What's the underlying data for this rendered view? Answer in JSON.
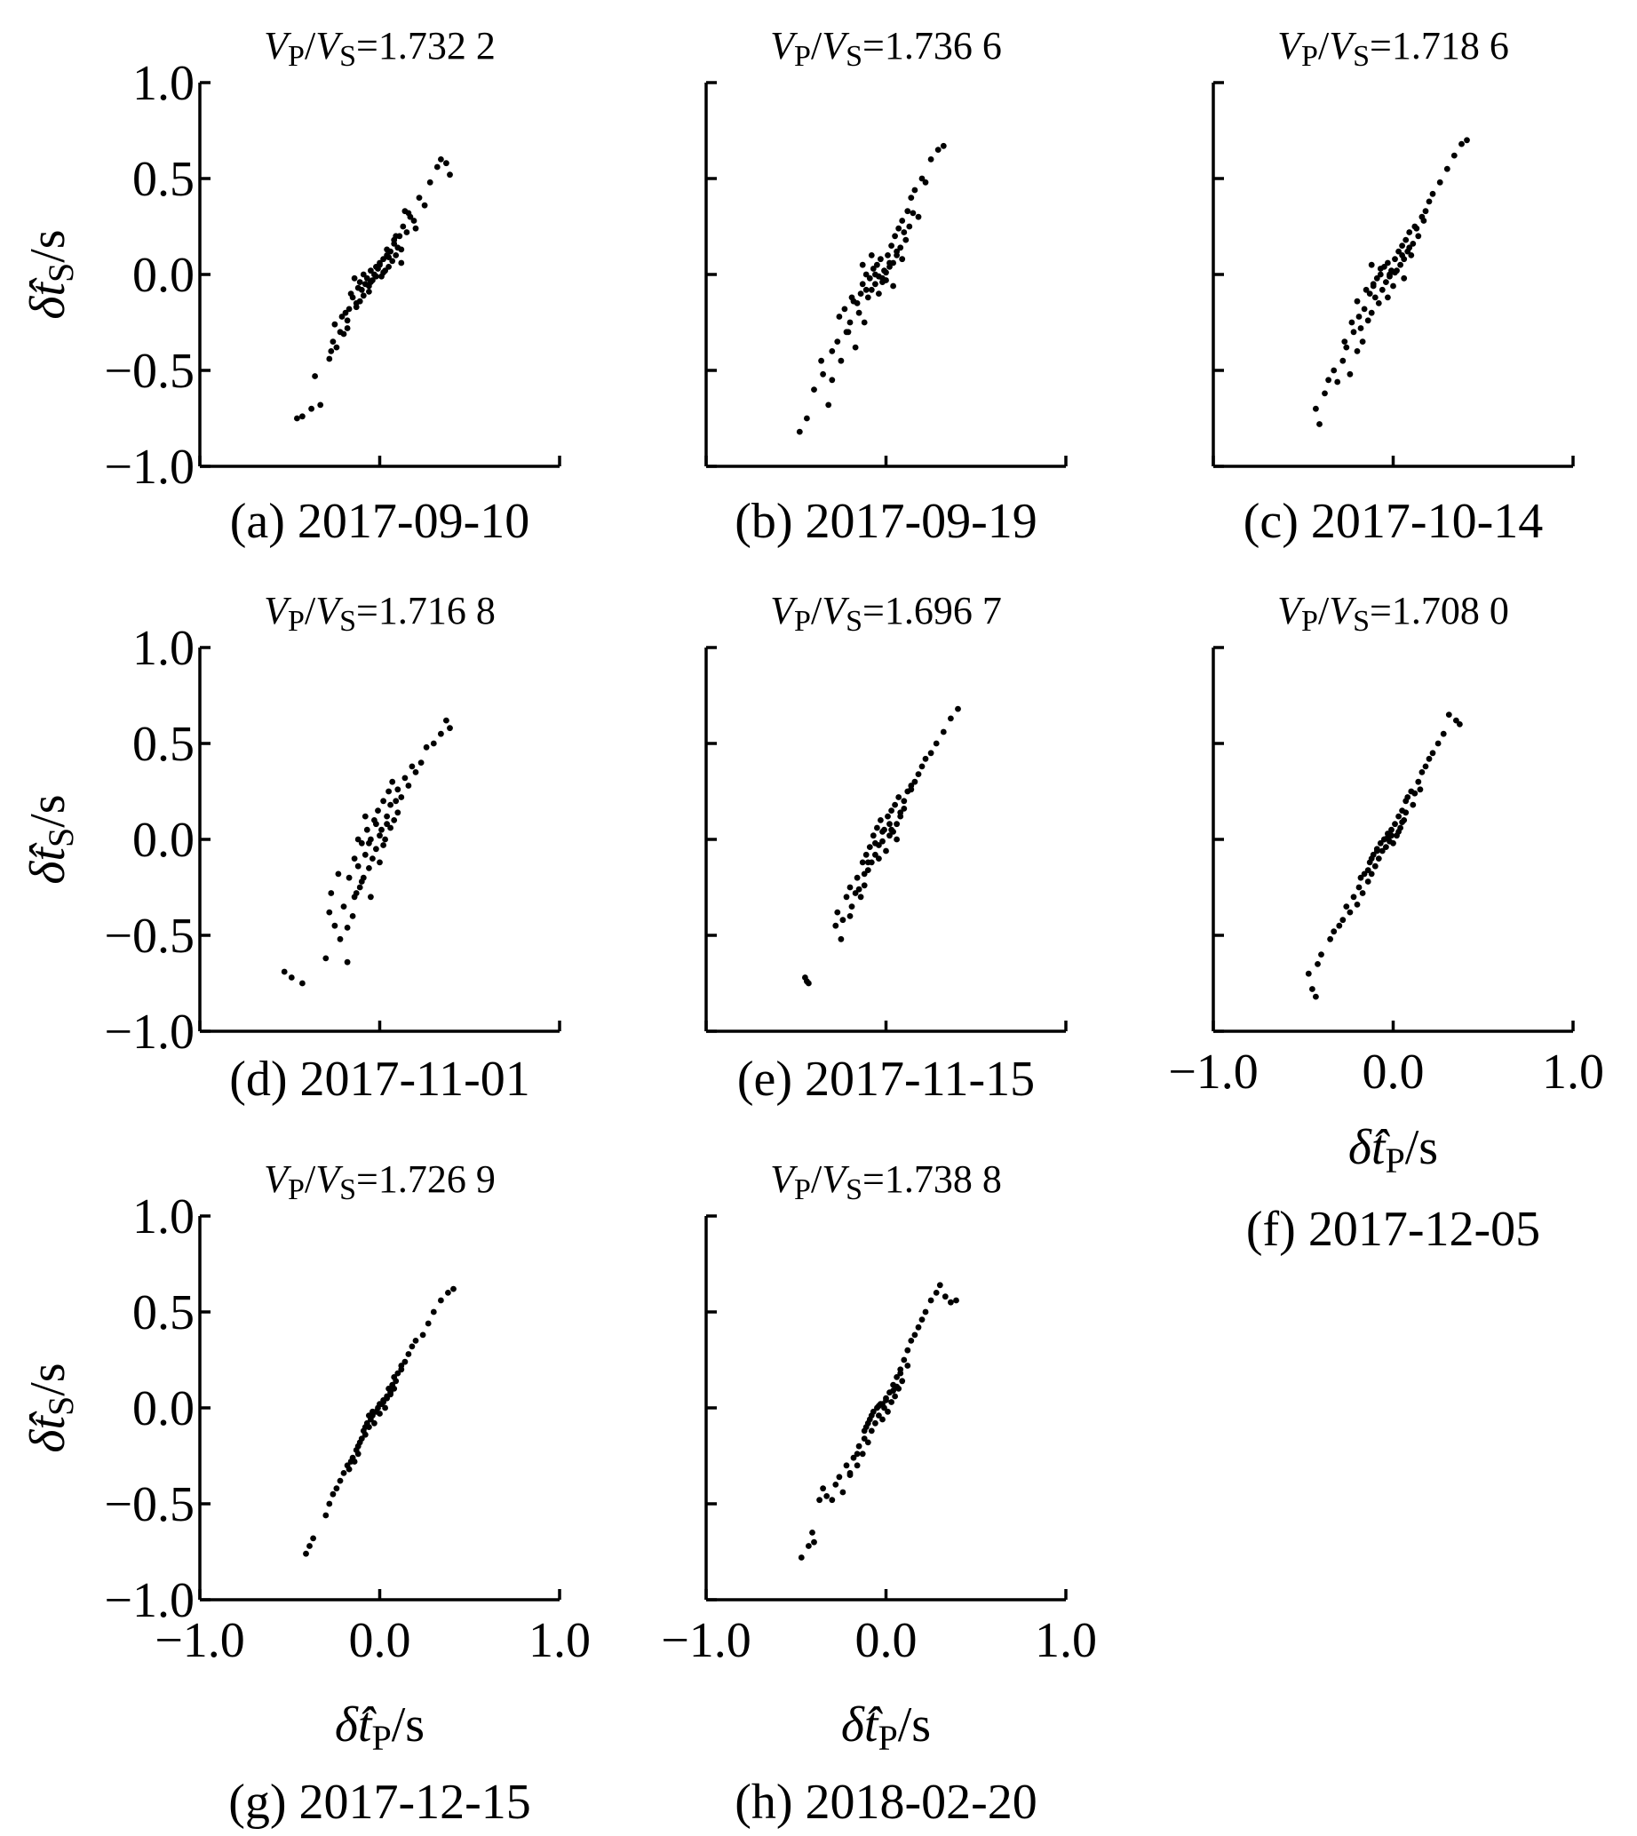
{
  "figure": {
    "tick_labels": [
      "−1.0",
      "−0.5",
      "0.0",
      "0.5",
      "1.0"
    ],
    "x_tick_labels": [
      "−1.0",
      "0.0",
      "1.0"
    ],
    "y_axis_title": {
      "delta": "δ̂",
      "var": "t",
      "sub": "S",
      "unit": "/s"
    },
    "x_axis_title": {
      "delta": "δ̂",
      "var": "t",
      "sub": "P",
      "unit": "/s"
    },
    "ratio_symbol": {
      "v": "V",
      "p": "P",
      "s": "S",
      "slash": "/",
      "eq": "="
    }
  },
  "chart_data": [
    {
      "id": "a",
      "type": "scatter",
      "title": "1.732 2",
      "caption": "(a) 2017-09-10",
      "xlim": [
        -1.0,
        1.0
      ],
      "ylim": [
        -1.0,
        1.0
      ],
      "xlabel": "",
      "ylabel": "δ̂tS/s",
      "x": [
        -0.46,
        -0.43,
        -0.38,
        -0.36,
        -0.33,
        -0.28,
        -0.27,
        -0.26,
        -0.25,
        -0.22,
        -0.21,
        -0.2,
        -0.19,
        -0.18,
        -0.17,
        -0.16,
        -0.15,
        -0.14,
        -0.13,
        -0.12,
        -0.11,
        -0.1,
        -0.09,
        -0.08,
        -0.07,
        -0.06,
        -0.05,
        -0.04,
        -0.03,
        -0.02,
        -0.01,
        0.0,
        0.01,
        0.02,
        0.03,
        0.04,
        0.05,
        0.06,
        0.07,
        0.08,
        0.09,
        0.1,
        0.11,
        0.12,
        0.13,
        0.15,
        0.17,
        0.19,
        0.22,
        0.25,
        0.28,
        0.32,
        0.34,
        0.37,
        0.39,
        -0.24,
        -0.18,
        -0.13,
        -0.09,
        -0.05,
        -0.02,
        0.02,
        0.05,
        0.08,
        0.12,
        0.16,
        0.2,
        -0.11,
        -0.06,
        0.0,
        0.04,
        0.09,
        0.14
      ],
      "y": [
        -0.75,
        -0.74,
        -0.7,
        -0.53,
        -0.68,
        -0.44,
        -0.4,
        -0.35,
        -0.26,
        -0.3,
        -0.22,
        -0.31,
        -0.2,
        -0.24,
        -0.18,
        -0.1,
        -0.12,
        -0.02,
        -0.15,
        -0.07,
        -0.04,
        -0.08,
        0.0,
        -0.05,
        -0.02,
        -0.06,
        0.02,
        -0.03,
        0.0,
        -0.01,
        0.03,
        0.05,
        -0.01,
        0.08,
        0.02,
        0.1,
        0.04,
        0.12,
        0.07,
        0.16,
        0.1,
        0.14,
        0.2,
        0.13,
        0.25,
        0.22,
        0.3,
        0.28,
        0.4,
        0.36,
        0.48,
        0.56,
        0.6,
        0.58,
        0.52,
        -0.38,
        -0.28,
        -0.17,
        -0.11,
        -0.04,
        0.04,
        0.01,
        0.09,
        0.18,
        0.06,
        0.32,
        0.24,
        -0.14,
        -0.09,
        0.06,
        0.13,
        0.2,
        0.33
      ]
    },
    {
      "id": "b",
      "type": "scatter",
      "title": "1.736 6",
      "caption": "(b) 2017-09-19",
      "xlim": [
        -1.0,
        1.0
      ],
      "ylim": [
        -1.0,
        1.0
      ],
      "xlabel": "",
      "ylabel": "",
      "x": [
        -0.48,
        -0.44,
        -0.4,
        -0.36,
        -0.35,
        -0.32,
        -0.3,
        -0.27,
        -0.25,
        -0.23,
        -0.22,
        -0.2,
        -0.18,
        -0.17,
        -0.15,
        -0.14,
        -0.13,
        -0.12,
        -0.11,
        -0.1,
        -0.09,
        -0.08,
        -0.07,
        -0.06,
        -0.05,
        -0.04,
        -0.03,
        -0.02,
        -0.01,
        0.0,
        0.01,
        0.02,
        0.03,
        0.04,
        0.05,
        0.06,
        0.07,
        0.08,
        0.09,
        0.1,
        0.12,
        0.13,
        0.14,
        0.16,
        0.18,
        0.2,
        0.22,
        0.25,
        0.29,
        0.32,
        -0.3,
        -0.26,
        -0.21,
        -0.16,
        -0.11,
        -0.06,
        -0.02,
        0.02,
        0.06,
        0.11,
        0.15,
        -0.19,
        -0.08,
        0.0,
        0.04,
        0.09,
        -0.13,
        -0.04
      ],
      "y": [
        -0.82,
        -0.75,
        -0.6,
        -0.45,
        -0.52,
        -0.68,
        -0.4,
        -0.35,
        -0.45,
        -0.18,
        -0.3,
        -0.25,
        -0.14,
        -0.38,
        -0.2,
        -0.1,
        -0.05,
        -0.25,
        0.0,
        -0.12,
        -0.02,
        -0.08,
        0.03,
        -0.05,
        0.05,
        -0.1,
        0.08,
        -0.02,
        0.02,
        -0.03,
        0.1,
        0.04,
        0.15,
        0.06,
        0.2,
        0.1,
        0.24,
        0.14,
        0.28,
        0.22,
        0.33,
        0.25,
        0.4,
        0.44,
        0.3,
        0.5,
        0.48,
        0.6,
        0.65,
        0.67,
        -0.55,
        -0.22,
        -0.3,
        -0.15,
        -0.08,
        0.0,
        -0.04,
        0.06,
        0.12,
        0.18,
        0.32,
        -0.12,
        0.1,
        0.01,
        -0.06,
        0.08,
        0.05,
        -0.01
      ]
    },
    {
      "id": "c",
      "type": "scatter",
      "title": "1.718 6",
      "caption": "(c) 2017-10-14",
      "xlim": [
        -1.0,
        1.0
      ],
      "ylim": [
        -1.0,
        1.0
      ],
      "xlabel": "",
      "ylabel": "",
      "x": [
        -0.43,
        -0.41,
        -0.38,
        -0.36,
        -0.33,
        -0.31,
        -0.28,
        -0.26,
        -0.24,
        -0.22,
        -0.2,
        -0.19,
        -0.17,
        -0.16,
        -0.14,
        -0.13,
        -0.12,
        -0.11,
        -0.1,
        -0.09,
        -0.08,
        -0.07,
        -0.06,
        -0.05,
        -0.04,
        -0.03,
        -0.02,
        -0.01,
        0.0,
        0.01,
        0.02,
        0.03,
        0.04,
        0.05,
        0.06,
        0.07,
        0.08,
        0.09,
        0.1,
        0.12,
        0.14,
        0.16,
        0.18,
        0.2,
        0.22,
        0.26,
        0.3,
        0.34,
        0.38,
        0.41,
        -0.27,
        -0.23,
        -0.18,
        -0.15,
        -0.11,
        -0.07,
        -0.03,
        0.01,
        0.05,
        0.09,
        0.13,
        0.17,
        -0.2,
        -0.12,
        -0.02,
        0.06,
        0.11
      ],
      "y": [
        -0.7,
        -0.78,
        -0.62,
        -0.55,
        -0.5,
        -0.56,
        -0.45,
        -0.38,
        -0.52,
        -0.3,
        -0.4,
        -0.22,
        -0.35,
        -0.18,
        -0.24,
        -0.1,
        -0.2,
        -0.05,
        -0.12,
        -0.02,
        -0.15,
        0.0,
        -0.08,
        0.04,
        -0.04,
        0.06,
        -0.01,
        0.02,
        -0.06,
        0.08,
        0.02,
        0.12,
        0.05,
        0.15,
        0.08,
        0.18,
        0.12,
        0.22,
        0.1,
        0.25,
        0.2,
        0.3,
        0.33,
        0.38,
        0.42,
        0.48,
        0.55,
        0.62,
        0.68,
        0.7,
        -0.35,
        -0.25,
        -0.28,
        -0.08,
        -0.06,
        0.03,
        -0.12,
        0.01,
        0.1,
        0.14,
        0.24,
        0.28,
        -0.14,
        0.05,
        0.0,
        -0.02,
        0.16
      ]
    },
    {
      "id": "d",
      "type": "scatter",
      "title": "1.716 8",
      "caption": "(d) 2017-11-01",
      "xlim": [
        -1.0,
        1.0
      ],
      "ylim": [
        -1.0,
        1.0
      ],
      "xlabel": "",
      "ylabel": "δ̂tS/s",
      "x": [
        -0.53,
        -0.49,
        -0.43,
        -0.3,
        -0.28,
        -0.27,
        -0.25,
        -0.23,
        -0.22,
        -0.2,
        -0.18,
        -0.17,
        -0.15,
        -0.14,
        -0.13,
        -0.12,
        -0.11,
        -0.1,
        -0.09,
        -0.08,
        -0.07,
        -0.06,
        -0.05,
        -0.04,
        -0.03,
        -0.02,
        -0.01,
        0.0,
        0.01,
        0.02,
        0.03,
        0.04,
        0.05,
        0.06,
        0.07,
        0.08,
        0.09,
        0.1,
        0.12,
        0.14,
        0.16,
        0.18,
        0.2,
        0.23,
        0.26,
        0.3,
        0.34,
        0.37,
        0.39,
        -0.18,
        -0.14,
        -0.1,
        -0.06,
        -0.02,
        0.02,
        0.06,
        0.1,
        -0.05,
        0.0,
        0.04,
        -0.12,
        -0.08
      ],
      "y": [
        -0.69,
        -0.72,
        -0.75,
        -0.62,
        -0.38,
        -0.28,
        -0.45,
        -0.18,
        -0.52,
        -0.35,
        -0.64,
        -0.2,
        -0.4,
        -0.1,
        -0.28,
        -0.14,
        -0.25,
        -0.02,
        -0.2,
        -0.08,
        0.05,
        -0.15,
        0.0,
        -0.1,
        0.1,
        -0.05,
        0.15,
        -0.12,
        0.05,
        0.2,
        0.0,
        0.12,
        0.25,
        0.06,
        0.3,
        0.1,
        0.2,
        0.14,
        0.22,
        0.32,
        0.28,
        0.38,
        0.35,
        0.4,
        0.48,
        0.5,
        0.55,
        0.62,
        0.58,
        -0.46,
        -0.3,
        -0.22,
        -0.02,
        0.08,
        -0.03,
        0.18,
        0.26,
        -0.3,
        0.02,
        0.08,
        0.0,
        0.12
      ]
    },
    {
      "id": "e",
      "type": "scatter",
      "title": "1.696 7",
      "caption": "(e) 2017-11-15",
      "xlim": [
        -1.0,
        1.0
      ],
      "ylim": [
        -1.0,
        1.0
      ],
      "xlabel": "",
      "ylabel": "",
      "x": [
        -0.45,
        -0.44,
        -0.43,
        -0.28,
        -0.27,
        -0.25,
        -0.24,
        -0.22,
        -0.2,
        -0.19,
        -0.17,
        -0.16,
        -0.14,
        -0.13,
        -0.12,
        -0.11,
        -0.1,
        -0.09,
        -0.08,
        -0.07,
        -0.06,
        -0.05,
        -0.04,
        -0.03,
        -0.02,
        -0.01,
        0.0,
        0.01,
        0.02,
        0.03,
        0.04,
        0.05,
        0.06,
        0.07,
        0.08,
        0.1,
        0.12,
        0.14,
        0.16,
        0.18,
        0.2,
        0.22,
        0.25,
        0.28,
        0.32,
        0.36,
        0.4,
        -0.2,
        -0.15,
        -0.1,
        -0.06,
        -0.02,
        0.02,
        0.06,
        0.1,
        0.14,
        -0.12,
        -0.04,
        0.03,
        0.08
      ],
      "y": [
        -0.72,
        -0.74,
        -0.75,
        -0.45,
        -0.38,
        -0.52,
        -0.42,
        -0.3,
        -0.25,
        -0.35,
        -0.28,
        -0.2,
        -0.3,
        -0.12,
        -0.24,
        -0.08,
        -0.16,
        -0.04,
        -0.12,
        0.02,
        -0.08,
        0.06,
        -0.03,
        0.1,
        -0.01,
        0.05,
        -0.06,
        0.12,
        0.02,
        0.15,
        0.04,
        0.18,
        0.08,
        0.22,
        0.12,
        0.16,
        0.25,
        0.26,
        0.3,
        0.34,
        0.38,
        0.42,
        0.45,
        0.5,
        0.56,
        0.63,
        0.68,
        -0.4,
        -0.26,
        -0.12,
        -0.02,
        0.04,
        0.08,
        0.0,
        0.2,
        0.28,
        -0.18,
        -0.1,
        0.05,
        0.14
      ]
    },
    {
      "id": "f",
      "type": "scatter",
      "title": "1.708 0",
      "caption": "(f) 2017-12-05",
      "xlim": [
        -1.0,
        1.0
      ],
      "ylim": [
        -1.0,
        1.0
      ],
      "xlabel": "δ̂tP/s",
      "ylabel": "",
      "x": [
        -0.47,
        -0.45,
        -0.43,
        -0.42,
        -0.4,
        -0.35,
        -0.33,
        -0.3,
        -0.28,
        -0.26,
        -0.24,
        -0.22,
        -0.2,
        -0.19,
        -0.17,
        -0.16,
        -0.14,
        -0.13,
        -0.12,
        -0.11,
        -0.1,
        -0.09,
        -0.08,
        -0.07,
        -0.06,
        -0.05,
        -0.04,
        -0.03,
        -0.02,
        -0.01,
        0.0,
        0.01,
        0.02,
        0.03,
        0.04,
        0.05,
        0.06,
        0.07,
        0.08,
        0.1,
        0.12,
        0.14,
        0.16,
        0.18,
        0.2,
        0.22,
        0.25,
        0.28,
        0.31,
        0.35,
        0.37,
        -0.18,
        -0.14,
        -0.09,
        -0.05,
        -0.01,
        0.03,
        0.07,
        0.11,
        0.15,
        -0.12,
        -0.03,
        0.05
      ],
      "y": [
        -0.7,
        -0.78,
        -0.82,
        -0.65,
        -0.6,
        -0.52,
        -0.48,
        -0.45,
        -0.42,
        -0.35,
        -0.38,
        -0.3,
        -0.34,
        -0.25,
        -0.28,
        -0.18,
        -0.22,
        -0.12,
        -0.18,
        -0.08,
        -0.14,
        -0.05,
        -0.1,
        -0.02,
        -0.06,
        0.0,
        -0.04,
        0.03,
        -0.01,
        0.05,
        -0.02,
        0.08,
        0.02,
        0.12,
        0.06,
        0.15,
        0.1,
        0.2,
        0.22,
        0.25,
        0.24,
        0.3,
        0.35,
        0.38,
        0.42,
        0.45,
        0.5,
        0.55,
        0.65,
        0.62,
        0.6,
        -0.2,
        -0.16,
        -0.06,
        0.0,
        0.02,
        0.04,
        0.14,
        0.18,
        0.26,
        -0.1,
        0.01,
        0.09
      ]
    },
    {
      "id": "g",
      "type": "scatter",
      "title": "1.726 9",
      "caption": "(g) 2017-12-15",
      "xlim": [
        -1.0,
        1.0
      ],
      "ylim": [
        -1.0,
        1.0
      ],
      "xlabel": "δ̂tP/s",
      "ylabel": "δ̂tS/s",
      "x": [
        -0.41,
        -0.39,
        -0.37,
        -0.3,
        -0.28,
        -0.26,
        -0.24,
        -0.22,
        -0.2,
        -0.18,
        -0.17,
        -0.15,
        -0.14,
        -0.13,
        -0.12,
        -0.11,
        -0.1,
        -0.09,
        -0.08,
        -0.07,
        -0.06,
        -0.05,
        -0.04,
        -0.03,
        -0.02,
        -0.01,
        0.0,
        0.01,
        0.02,
        0.03,
        0.04,
        0.05,
        0.06,
        0.07,
        0.08,
        0.09,
        0.1,
        0.12,
        0.14,
        0.16,
        0.18,
        0.2,
        0.24,
        0.27,
        0.3,
        0.34,
        0.38,
        0.41,
        -0.16,
        -0.12,
        -0.08,
        -0.04,
        0.0,
        0.04,
        0.08,
        0.12,
        -0.06,
        0.02,
        0.06
      ],
      "y": [
        -0.76,
        -0.72,
        -0.68,
        -0.56,
        -0.5,
        -0.45,
        -0.42,
        -0.38,
        -0.34,
        -0.3,
        -0.32,
        -0.26,
        -0.28,
        -0.22,
        -0.24,
        -0.18,
        -0.16,
        -0.12,
        -0.14,
        -0.08,
        -0.1,
        -0.06,
        -0.04,
        -0.08,
        -0.02,
        0.0,
        -0.03,
        0.02,
        0.04,
        0.0,
        0.06,
        0.1,
        0.08,
        0.12,
        0.16,
        0.14,
        0.18,
        0.2,
        0.24,
        0.28,
        0.32,
        0.35,
        0.38,
        0.44,
        0.5,
        0.56,
        0.6,
        0.62,
        -0.28,
        -0.2,
        -0.1,
        -0.02,
        0.02,
        0.05,
        0.1,
        0.22,
        -0.04,
        0.03,
        0.07
      ]
    },
    {
      "id": "h",
      "type": "scatter",
      "title": "1.738 8",
      "caption": "(h) 2018-02-20",
      "xlim": [
        -1.0,
        1.0
      ],
      "ylim": [
        -1.0,
        1.0
      ],
      "xlabel": "δ̂tP/s",
      "ylabel": "",
      "x": [
        -0.47,
        -0.43,
        -0.41,
        -0.4,
        -0.37,
        -0.35,
        -0.33,
        -0.3,
        -0.28,
        -0.26,
        -0.24,
        -0.22,
        -0.2,
        -0.18,
        -0.16,
        -0.15,
        -0.13,
        -0.12,
        -0.11,
        -0.1,
        -0.09,
        -0.08,
        -0.07,
        -0.06,
        -0.05,
        -0.04,
        -0.03,
        -0.02,
        -0.01,
        0.0,
        0.01,
        0.02,
        0.03,
        0.04,
        0.05,
        0.06,
        0.07,
        0.08,
        0.09,
        0.1,
        0.12,
        0.14,
        0.16,
        0.18,
        0.2,
        0.22,
        0.25,
        0.28,
        0.3,
        0.33,
        0.36,
        0.39,
        -0.2,
        -0.16,
        -0.12,
        -0.08,
        -0.04,
        0.0,
        0.04,
        0.08,
        0.12,
        -0.1,
        -0.02,
        0.06
      ],
      "y": [
        -0.78,
        -0.72,
        -0.65,
        -0.7,
        -0.48,
        -0.42,
        -0.46,
        -0.48,
        -0.4,
        -0.36,
        -0.44,
        -0.3,
        -0.35,
        -0.26,
        -0.3,
        -0.2,
        -0.24,
        -0.16,
        -0.1,
        -0.18,
        -0.06,
        -0.12,
        -0.02,
        -0.08,
        0.0,
        -0.04,
        0.02,
        -0.06,
        0.0,
        0.04,
        -0.02,
        0.08,
        0.03,
        0.12,
        0.06,
        0.16,
        0.1,
        0.2,
        0.14,
        0.25,
        0.3,
        0.35,
        0.38,
        0.42,
        0.46,
        0.5,
        0.56,
        0.6,
        0.64,
        0.58,
        0.55,
        0.56,
        -0.34,
        -0.24,
        -0.12,
        -0.04,
        0.01,
        0.05,
        0.09,
        0.18,
        0.22,
        -0.08,
        0.02,
        0.11
      ]
    }
  ]
}
